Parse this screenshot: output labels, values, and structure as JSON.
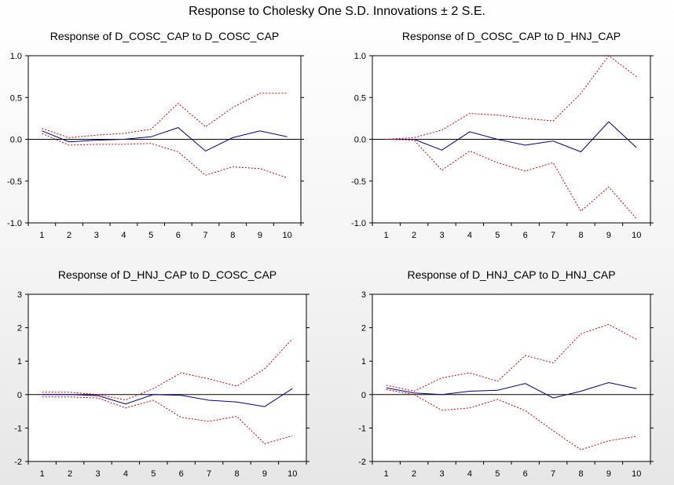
{
  "title": "Response to Cholesky One S.D. Innovations ± 2 S.E.",
  "colors": {
    "response": "#00007f",
    "bands": "#cc0000",
    "zero": "#000000"
  },
  "chart_data": [
    {
      "type": "line",
      "title": "Response of D_COSC_CAP to D_COSC_CAP",
      "x": [
        1,
        2,
        3,
        4,
        5,
        6,
        7,
        8,
        9,
        10
      ],
      "ylim": [
        -1.0,
        1.0
      ],
      "yticks": [
        "-1.0",
        "-0.5",
        "0.0",
        "0.5",
        "1.0"
      ],
      "ytick_values": [
        -1.0,
        -0.5,
        0.0,
        0.5,
        1.0
      ],
      "series": [
        {
          "role": "response",
          "values": [
            0.1,
            -0.03,
            -0.01,
            0.0,
            0.03,
            0.14,
            -0.14,
            0.02,
            0.1,
            0.03
          ]
        },
        {
          "role": "upper-band",
          "values": [
            0.13,
            0.02,
            0.05,
            0.07,
            0.12,
            0.43,
            0.15,
            0.38,
            0.55,
            0.55
          ]
        },
        {
          "role": "lower-band",
          "values": [
            0.07,
            -0.07,
            -0.06,
            -0.06,
            -0.05,
            -0.15,
            -0.43,
            -0.33,
            -0.35,
            -0.46
          ]
        }
      ]
    },
    {
      "type": "line",
      "title": "Response of D_COSC_CAP to D_HNJ_CAP",
      "x": [
        1,
        2,
        3,
        4,
        5,
        6,
        7,
        8,
        9,
        10
      ],
      "ylim": [
        -1.0,
        1.0
      ],
      "yticks": [
        "-1.0",
        "-0.5",
        "0.0",
        "0.5",
        "1.0"
      ],
      "ytick_values": [
        -1.0,
        -0.5,
        0.0,
        0.5,
        1.0
      ],
      "series": [
        {
          "role": "response",
          "values": [
            0.0,
            0.0,
            -0.13,
            0.09,
            0.0,
            -0.07,
            -0.02,
            -0.15,
            0.21,
            -0.1
          ]
        },
        {
          "role": "upper-band",
          "values": [
            0.0,
            0.02,
            0.11,
            0.31,
            0.29,
            0.25,
            0.22,
            0.55,
            1.0,
            0.75
          ]
        },
        {
          "role": "lower-band",
          "values": [
            0.0,
            -0.01,
            -0.37,
            -0.14,
            -0.28,
            -0.38,
            -0.28,
            -0.86,
            -0.57,
            -0.95
          ]
        }
      ]
    },
    {
      "type": "line",
      "title": "Response of D_HNJ_CAP to D_COSC_CAP",
      "x": [
        1,
        2,
        3,
        4,
        5,
        6,
        7,
        8,
        9,
        10
      ],
      "ylim": [
        -2,
        3
      ],
      "yticks": [
        "-2",
        "-1",
        "0",
        "1",
        "2",
        "3"
      ],
      "ytick_values": [
        -2,
        -1,
        0,
        1,
        2,
        3
      ],
      "series": [
        {
          "role": "response",
          "values": [
            0.0,
            0.0,
            -0.03,
            -0.28,
            0.0,
            -0.02,
            -0.17,
            -0.22,
            -0.36,
            0.18
          ]
        },
        {
          "role": "upper-band",
          "values": [
            0.07,
            0.07,
            0.0,
            -0.16,
            0.18,
            0.65,
            0.47,
            0.25,
            0.77,
            1.67
          ]
        },
        {
          "role": "lower-band",
          "values": [
            -0.07,
            -0.07,
            -0.1,
            -0.4,
            -0.17,
            -0.68,
            -0.8,
            -0.65,
            -1.47,
            -1.23
          ]
        }
      ]
    },
    {
      "type": "line",
      "title": "Response of D_HNJ_CAP to D_HNJ_CAP",
      "x": [
        1,
        2,
        3,
        4,
        5,
        6,
        7,
        8,
        9,
        10
      ],
      "ylim": [
        -2,
        3
      ],
      "yticks": [
        "-2",
        "-1",
        "0",
        "1",
        "2",
        "3"
      ],
      "ytick_values": [
        -2,
        -1,
        0,
        1,
        2,
        3
      ],
      "series": [
        {
          "role": "response",
          "values": [
            0.2,
            0.05,
            0.0,
            0.1,
            0.13,
            0.33,
            -0.1,
            0.1,
            0.36,
            0.18
          ]
        },
        {
          "role": "upper-band",
          "values": [
            0.28,
            0.1,
            0.5,
            0.65,
            0.4,
            1.17,
            0.95,
            1.82,
            2.1,
            1.65
          ]
        },
        {
          "role": "lower-band",
          "values": [
            0.15,
            0.0,
            -0.47,
            -0.4,
            -0.14,
            -0.48,
            -1.08,
            -1.65,
            -1.38,
            -1.25
          ]
        }
      ]
    }
  ]
}
